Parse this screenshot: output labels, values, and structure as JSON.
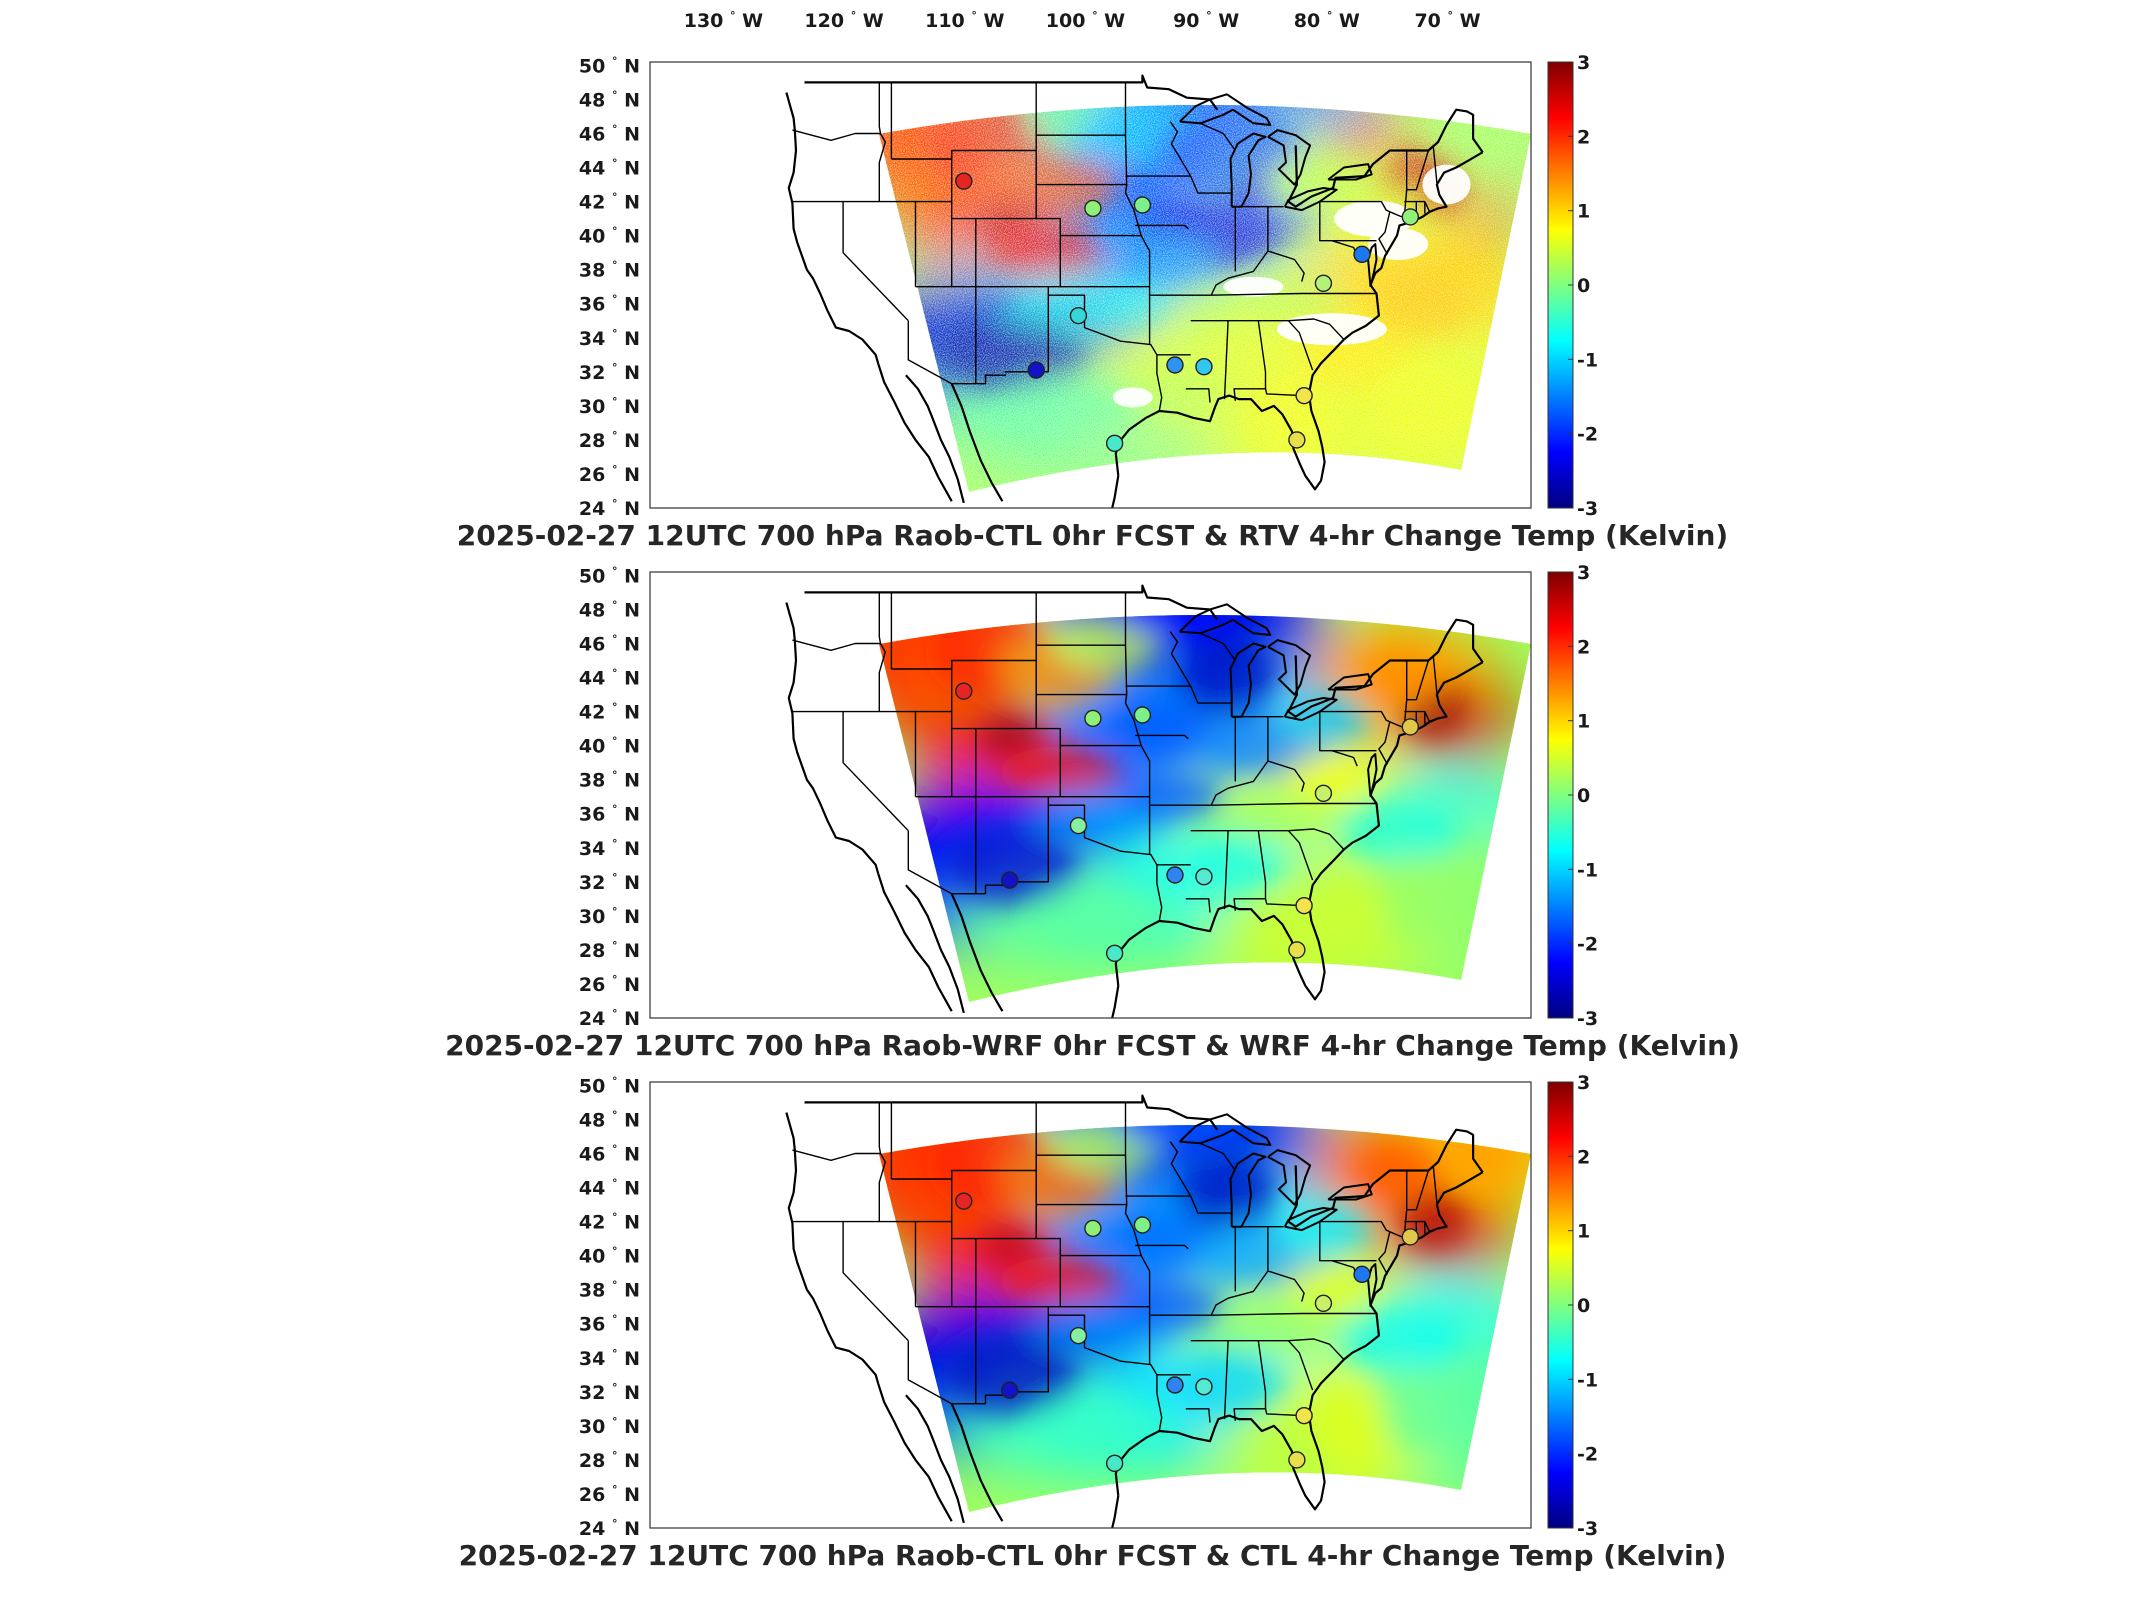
{
  "top_axis": {
    "lon_labels": [
      "130",
      "120",
      "110",
      "100",
      "90",
      "80",
      "70"
    ],
    "lon_suffix": "W",
    "lon_values": [
      -130,
      -120,
      -110,
      -100,
      -90,
      -80,
      -70
    ]
  },
  "lat_suffix": "N",
  "lat_labels": [
    "50",
    "48",
    "46",
    "44",
    "42",
    "40",
    "38",
    "36",
    "34",
    "32",
    "30",
    "28",
    "26",
    "24"
  ],
  "lat_values": [
    50,
    48,
    46,
    44,
    42,
    40,
    38,
    36,
    34,
    32,
    30,
    28,
    26,
    24
  ],
  "colorbar": {
    "ticks": [
      "3",
      "2",
      "1",
      "0",
      "-1",
      "-2",
      "-3"
    ],
    "values": [
      3,
      2,
      1,
      0,
      -1,
      -2,
      -3
    ],
    "colormap": "jet",
    "stops": [
      "#7f0000",
      "#ff0000",
      "#ffff00",
      "#00ffff",
      "#0000ff",
      "#00007f"
    ]
  },
  "panels": [
    {
      "title": "2025-02-27 12UTC 700 hPa Raob-CTL 0hr FCST & RTV 4-hr Change Temp (Kelvin)",
      "field": "RTV 4-hr change (with white gaps)",
      "stations": [
        {
          "lon": -110,
          "lat": 43.2,
          "color": "#e52424"
        },
        {
          "lon": -99.3,
          "lat": 41.6,
          "color": "#8ff077"
        },
        {
          "lon": -95.2,
          "lat": 41.8,
          "color": "#7ef08a"
        },
        {
          "lon": -100.5,
          "lat": 35.3,
          "color": "#36d7d7"
        },
        {
          "lon": -92.5,
          "lat": 32.4,
          "color": "#2f94f0"
        },
        {
          "lon": -90.1,
          "lat": 32.3,
          "color": "#30c8f0"
        },
        {
          "lon": -81.8,
          "lat": 30.6,
          "color": "#f2e44c"
        },
        {
          "lon": -82.4,
          "lat": 28.0,
          "color": "#e8e04a"
        },
        {
          "lon": -80.2,
          "lat": 37.2,
          "color": "#b2f27a"
        },
        {
          "lon": -77.0,
          "lat": 38.9,
          "color": "#1d78f0"
        },
        {
          "lon": -73.0,
          "lat": 41.1,
          "color": "#90f07a"
        },
        {
          "lon": -104.0,
          "lat": 32.1,
          "color": "#1212c8"
        },
        {
          "lon": -97.5,
          "lat": 27.8,
          "color": "#49e8c8"
        }
      ]
    },
    {
      "title": "2025-02-27 12UTC 700 hPa Raob-WRF 0hr FCST & WRF 4-hr Change Temp (Kelvin)",
      "field": "WRF 4-hr change",
      "stations": [
        {
          "lon": -110,
          "lat": 43.2,
          "color": "#e52424"
        },
        {
          "lon": -99.3,
          "lat": 41.6,
          "color": "#8ff077"
        },
        {
          "lon": -95.2,
          "lat": 41.8,
          "color": "#7ef08a"
        },
        {
          "lon": -100.5,
          "lat": 35.3,
          "color": "#86f0a0"
        },
        {
          "lon": -92.5,
          "lat": 32.4,
          "color": "#2f84f0"
        },
        {
          "lon": -90.1,
          "lat": 32.3,
          "color": "#55e8d2"
        },
        {
          "lon": -81.8,
          "lat": 30.6,
          "color": "#f2e44c"
        },
        {
          "lon": -82.4,
          "lat": 28.0,
          "color": "#e8e04a"
        },
        {
          "lon": -80.2,
          "lat": 37.2,
          "color": "#c8f06a"
        },
        {
          "lon": -73.0,
          "lat": 41.1,
          "color": "#e0c84a"
        },
        {
          "lon": -106.2,
          "lat": 32.1,
          "color": "#1212c8"
        },
        {
          "lon": -97.5,
          "lat": 27.8,
          "color": "#49e8c8"
        }
      ]
    },
    {
      "title": "2025-02-27 12UTC 700 hPa Raob-CTL 0hr FCST & CTL 4-hr Change Temp (Kelvin)",
      "field": "CTL 4-hr change",
      "stations": [
        {
          "lon": -110,
          "lat": 43.2,
          "color": "#e52424"
        },
        {
          "lon": -99.3,
          "lat": 41.6,
          "color": "#8ff077"
        },
        {
          "lon": -95.2,
          "lat": 41.8,
          "color": "#7ef08a"
        },
        {
          "lon": -100.5,
          "lat": 35.3,
          "color": "#86f0a0"
        },
        {
          "lon": -92.5,
          "lat": 32.4,
          "color": "#2f84f0"
        },
        {
          "lon": -90.1,
          "lat": 32.3,
          "color": "#55e8d2"
        },
        {
          "lon": -81.8,
          "lat": 30.6,
          "color": "#f2e44c"
        },
        {
          "lon": -82.4,
          "lat": 28.0,
          "color": "#e8e04a"
        },
        {
          "lon": -80.2,
          "lat": 37.2,
          "color": "#c8f06a"
        },
        {
          "lon": -77.0,
          "lat": 38.9,
          "color": "#1d78f0"
        },
        {
          "lon": -73.0,
          "lat": 41.1,
          "color": "#e0c84a"
        },
        {
          "lon": -106.2,
          "lat": 32.1,
          "color": "#1212c8"
        },
        {
          "lon": -97.5,
          "lat": 27.8,
          "color": "#49e8c8"
        }
      ]
    }
  ]
}
